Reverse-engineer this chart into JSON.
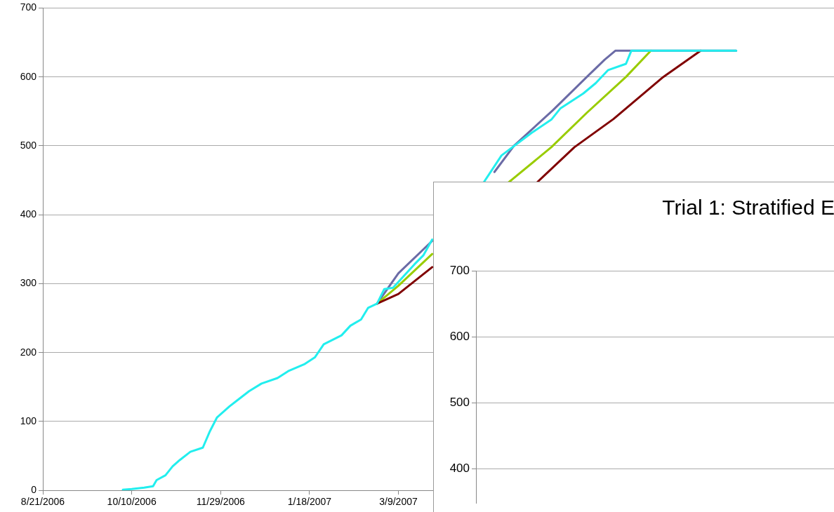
{
  "chart_data": [
    {
      "type": "line",
      "xlim": [
        "2006-08-21",
        "2007-11-09"
      ],
      "xticks": [
        {
          "value": "2006-08-21",
          "label": "8/21/2006"
        },
        {
          "value": "2006-10-10",
          "label": "10/10/2006"
        },
        {
          "value": "2006-11-29",
          "label": "11/29/2006"
        },
        {
          "value": "2007-01-18",
          "label": "1/18/2007"
        },
        {
          "value": "2007-03-09",
          "label": "3/9/2007"
        }
      ],
      "ylim": [
        0,
        700
      ],
      "yticks": [
        0,
        100,
        200,
        300,
        400,
        500,
        600,
        700
      ],
      "grid": "y",
      "marker": "none",
      "line_style": "solid",
      "series": [
        {
          "color": "#6b6ba6",
          "x": [
            "2007-02-25",
            "2007-03-09",
            "2007-03-28",
            "2007-04-10",
            "2007-05-02",
            "2007-05-13",
            "2007-06-04",
            "2007-06-23",
            "2007-07-03",
            "2007-07-09",
            "2007-09-15"
          ],
          "values": [
            271,
            315,
            362,
            null,
            462,
            500,
            552,
            600,
            625,
            638,
            638
          ]
        },
        {
          "color": "#99cc00",
          "x": [
            "2007-02-25",
            "2007-03-09",
            "2007-03-28",
            "2007-04-10",
            "2007-05-10",
            "2007-06-03",
            "2007-06-23",
            "2007-07-15",
            "2007-07-29"
          ],
          "values": [
            271,
            297,
            343,
            null,
            447,
            498,
            548,
            600,
            638
          ]
        },
        {
          "color": "#800000",
          "x": [
            "2007-02-25",
            "2007-03-09",
            "2007-03-28",
            "2007-04-10",
            "2007-05-26",
            "2007-06-16",
            "2007-07-08",
            "2007-08-05",
            "2007-08-26"
          ],
          "values": [
            271,
            285,
            324,
            null,
            447,
            498,
            539,
            600,
            638
          ]
        },
        {
          "color": "#22eeee",
          "x": [
            "2006-10-05",
            "2006-10-10",
            "2006-10-17",
            "2006-10-22",
            "2006-10-24",
            "2006-10-29",
            "2006-11-02",
            "2006-11-06",
            "2006-11-12",
            "2006-11-19",
            "2006-11-23",
            "2006-11-27",
            "2006-12-04",
            "2006-12-08",
            "2006-12-15",
            "2006-12-22",
            "2006-12-31",
            "2007-01-06",
            "2007-01-15",
            "2007-01-21",
            "2007-01-26",
            "2007-02-05",
            "2007-02-10",
            "2007-02-16",
            "2007-02-20",
            "2007-02-25",
            "2007-03-01",
            "2007-03-06",
            "2007-03-18",
            "2007-03-23",
            "2007-03-28",
            "2007-04-10",
            "2007-04-26",
            "2007-05-06",
            "2007-05-23",
            "2007-06-03",
            "2007-06-08",
            "2007-06-21",
            "2007-06-28",
            "2007-07-05",
            "2007-07-15",
            "2007-07-18",
            "2007-09-15"
          ],
          "values": [
            1,
            2,
            4,
            6,
            15,
            22,
            35,
            44,
            56,
            62,
            86,
            106,
            122,
            130,
            144,
            155,
            163,
            173,
            183,
            193,
            212,
            225,
            239,
            248,
            265,
            271,
            292,
            294,
            328,
            341,
            364,
            null,
            447,
            486,
            519,
            538,
            554,
            576,
            591,
            610,
            619,
            638,
            638
          ]
        }
      ]
    },
    {
      "type": "line",
      "title": "Trial 1: Stratified E",
      "categories": [
        null
      ],
      "ylim": [
        348,
        700
      ],
      "yticks": [
        400,
        500,
        600,
        700
      ],
      "grid": "y",
      "tick_labels": "y"
    }
  ]
}
